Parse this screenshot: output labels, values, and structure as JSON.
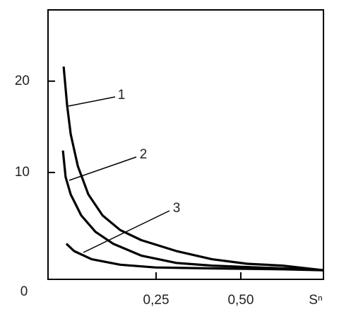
{
  "chart_data": {
    "type": "line",
    "x_label": "Sⁿ",
    "origin_label": "0",
    "xlim": [
      -0.069,
      0.744
    ],
    "xticks": [
      {
        "value": 0.25,
        "label": "0,25"
      },
      {
        "value": 0.5,
        "label": "0,50"
      }
    ],
    "ylim": [
      -1.7,
      27.8
    ],
    "yticks": [
      10,
      20
    ],
    "series": [
      {
        "name": "1",
        "color": "#000000",
        "x": [
          -0.023,
          -0.0125,
          -0.002,
          0.019,
          0.05,
          0.092,
          0.144,
          0.206,
          0.31,
          0.415,
          0.519,
          0.623,
          0.744
        ],
        "values": [
          21.6,
          17.3,
          14.2,
          10.7,
          7.6,
          5.3,
          3.7,
          2.6,
          1.4,
          0.5,
          0,
          -0.2,
          -0.7
        ]
      },
      {
        "name": "2",
        "color": "#000000",
        "x": [
          -0.025,
          -0.017,
          -0.002,
          0.029,
          0.071,
          0.123,
          0.206,
          0.31,
          0.415,
          0.623,
          0.744
        ],
        "values": [
          12.4,
          9.5,
          7.6,
          5.3,
          3.5,
          2.2,
          0.9,
          0.1,
          -0.2,
          -0.5,
          -0.7
        ]
      },
      {
        "name": "3",
        "color": "#000000",
        "x": [
          -0.015,
          0.008,
          0.06,
          0.144,
          0.248,
          0.415,
          0.623,
          0.744
        ],
        "values": [
          2.2,
          1.4,
          0.5,
          -0.1,
          -0.4,
          -0.5,
          -0.6,
          -0.7
        ]
      }
    ]
  }
}
